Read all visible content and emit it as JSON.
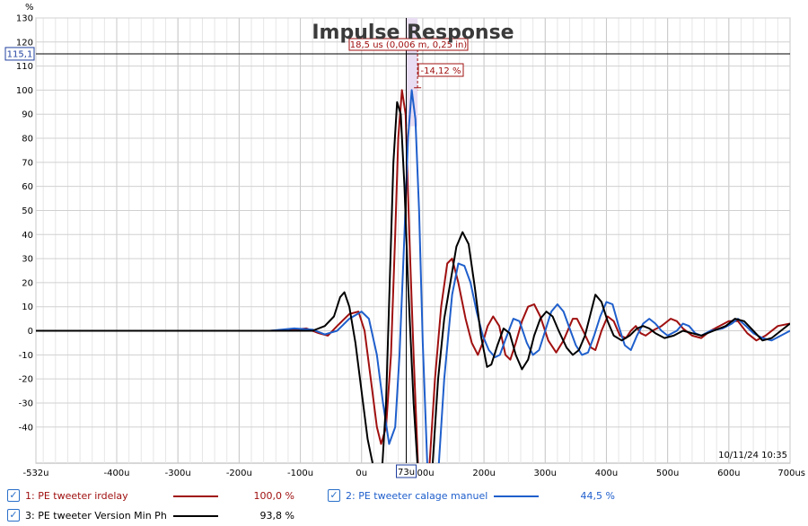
{
  "chart_data": {
    "type": "line",
    "title": "Impulse Response",
    "ylabel": "%",
    "xlim": [
      -532,
      700
    ],
    "ylim": [
      -55,
      130
    ],
    "x_ticks": [
      "-532u",
      "-400u",
      "-300u",
      "-200u",
      "-100u",
      "0u",
      "100u",
      "200u",
      "300u",
      "400u",
      "500u",
      "600u",
      "700us"
    ],
    "x_tick_values": [
      -532,
      -400,
      -300,
      -200,
      -100,
      0,
      100,
      200,
      300,
      400,
      500,
      600,
      700
    ],
    "y_ticks": [
      130,
      120,
      110,
      100,
      90,
      80,
      70,
      60,
      50,
      40,
      30,
      20,
      10,
      0,
      -10,
      -20,
      -30,
      -40
    ],
    "grid": true,
    "timestamp": "10/11/24 10:35",
    "cursor": {
      "x_label": "73u",
      "y_label": "115,1",
      "x_value": 73,
      "y_value": 115.1,
      "delta_label": "18,5 us (0,006 m, 0,25 in)",
      "delta_y_label": "-14,12 %"
    },
    "series": [
      {
        "name": "1: PE tweeter irdelay",
        "color": "#a01010",
        "level": "100,0 %",
        "points": [
          [
            -532,
            0
          ],
          [
            -150,
            0
          ],
          [
            -110,
            0.5
          ],
          [
            -90,
            1
          ],
          [
            -70,
            -1
          ],
          [
            -55,
            -2
          ],
          [
            -40,
            2
          ],
          [
            -20,
            7
          ],
          [
            -5,
            8
          ],
          [
            5,
            0
          ],
          [
            15,
            -20
          ],
          [
            25,
            -40
          ],
          [
            32,
            -47
          ],
          [
            40,
            -40
          ],
          [
            48,
            -10
          ],
          [
            55,
            40
          ],
          [
            60,
            80
          ],
          [
            66,
            100
          ],
          [
            72,
            90
          ],
          [
            78,
            40
          ],
          [
            85,
            -10
          ],
          [
            92,
            -55
          ],
          [
            100,
            -80
          ],
          [
            110,
            -60
          ],
          [
            120,
            -20
          ],
          [
            130,
            10
          ],
          [
            140,
            28
          ],
          [
            148,
            30
          ],
          [
            158,
            20
          ],
          [
            170,
            5
          ],
          [
            180,
            -5
          ],
          [
            190,
            -10
          ],
          [
            198,
            -5
          ],
          [
            206,
            2
          ],
          [
            215,
            6
          ],
          [
            225,
            2
          ],
          [
            235,
            -10
          ],
          [
            243,
            -12
          ],
          [
            252,
            -5
          ],
          [
            262,
            4
          ],
          [
            272,
            10
          ],
          [
            282,
            11
          ],
          [
            292,
            6
          ],
          [
            305,
            -4
          ],
          [
            318,
            -9
          ],
          [
            330,
            -4
          ],
          [
            345,
            5
          ],
          [
            352,
            5
          ],
          [
            362,
            0
          ],
          [
            375,
            -7
          ],
          [
            382,
            -8
          ],
          [
            392,
            0
          ],
          [
            402,
            6
          ],
          [
            412,
            4
          ],
          [
            422,
            -2
          ],
          [
            432,
            -3
          ],
          [
            440,
            0
          ],
          [
            448,
            2
          ],
          [
            456,
            -1
          ],
          [
            464,
            -2
          ],
          [
            475,
            0
          ],
          [
            490,
            2
          ],
          [
            505,
            5
          ],
          [
            515,
            4
          ],
          [
            525,
            1
          ],
          [
            540,
            -2
          ],
          [
            555,
            -3
          ],
          [
            570,
            0
          ],
          [
            600,
            4
          ],
          [
            615,
            4
          ],
          [
            630,
            -1
          ],
          [
            645,
            -4
          ],
          [
            660,
            -2
          ],
          [
            680,
            2
          ],
          [
            700,
            3
          ]
        ]
      },
      {
        "name": "2: PE tweeter calage manuel",
        "color": "#1f5fcc",
        "level": "44,5 %",
        "points": [
          [
            -532,
            0
          ],
          [
            -150,
            0
          ],
          [
            -110,
            1
          ],
          [
            -80,
            0.5
          ],
          [
            -60,
            -1.5
          ],
          [
            -40,
            0
          ],
          [
            -20,
            5
          ],
          [
            0,
            8
          ],
          [
            12,
            5
          ],
          [
            25,
            -10
          ],
          [
            35,
            -30
          ],
          [
            45,
            -47
          ],
          [
            55,
            -40
          ],
          [
            62,
            -10
          ],
          [
            70,
            40
          ],
          [
            76,
            80
          ],
          [
            82,
            100
          ],
          [
            88,
            88
          ],
          [
            94,
            50
          ],
          [
            100,
            -5
          ],
          [
            108,
            -60
          ],
          [
            115,
            -75
          ],
          [
            125,
            -60
          ],
          [
            135,
            -20
          ],
          [
            148,
            15
          ],
          [
            158,
            28
          ],
          [
            168,
            27
          ],
          [
            178,
            20
          ],
          [
            188,
            8
          ],
          [
            198,
            -2
          ],
          [
            208,
            -8
          ],
          [
            218,
            -11
          ],
          [
            226,
            -10
          ],
          [
            236,
            -3
          ],
          [
            248,
            5
          ],
          [
            258,
            4
          ],
          [
            270,
            -5
          ],
          [
            280,
            -10
          ],
          [
            290,
            -8
          ],
          [
            300,
            0
          ],
          [
            310,
            8
          ],
          [
            320,
            11
          ],
          [
            330,
            8
          ],
          [
            340,
            1
          ],
          [
            350,
            -6
          ],
          [
            360,
            -10
          ],
          [
            370,
            -9
          ],
          [
            380,
            -2
          ],
          [
            390,
            6
          ],
          [
            400,
            12
          ],
          [
            410,
            11
          ],
          [
            420,
            2
          ],
          [
            430,
            -6
          ],
          [
            440,
            -8
          ],
          [
            450,
            -2
          ],
          [
            460,
            3
          ],
          [
            470,
            5
          ],
          [
            480,
            3
          ],
          [
            490,
            0
          ],
          [
            500,
            -2
          ],
          [
            515,
            0
          ],
          [
            525,
            3
          ],
          [
            535,
            2
          ],
          [
            545,
            -1
          ],
          [
            555,
            -2
          ],
          [
            570,
            0
          ],
          [
            590,
            1
          ],
          [
            605,
            3
          ],
          [
            615,
            5
          ],
          [
            628,
            2
          ],
          [
            640,
            -1
          ],
          [
            655,
            -3
          ],
          [
            670,
            -4
          ],
          [
            685,
            -2
          ],
          [
            700,
            0
          ]
        ]
      },
      {
        "name": "3: PE tweeter Version Min Ph",
        "color": "#000000",
        "level": "93,8 %",
        "points": [
          [
            -532,
            0
          ],
          [
            -120,
            0
          ],
          [
            -100,
            0
          ],
          [
            -80,
            0
          ],
          [
            -60,
            2
          ],
          [
            -45,
            6
          ],
          [
            -35,
            14
          ],
          [
            -28,
            16
          ],
          [
            -20,
            10
          ],
          [
            -10,
            -5
          ],
          [
            0,
            -25
          ],
          [
            10,
            -45
          ],
          [
            18,
            -55
          ],
          [
            26,
            -62
          ],
          [
            33,
            -60
          ],
          [
            40,
            -30
          ],
          [
            46,
            20
          ],
          [
            52,
            70
          ],
          [
            58,
            95
          ],
          [
            64,
            90
          ],
          [
            70,
            60
          ],
          [
            76,
            20
          ],
          [
            85,
            -30
          ],
          [
            95,
            -70
          ],
          [
            105,
            -80
          ],
          [
            115,
            -60
          ],
          [
            125,
            -20
          ],
          [
            135,
            5
          ],
          [
            145,
            20
          ],
          [
            155,
            35
          ],
          [
            165,
            41
          ],
          [
            175,
            36
          ],
          [
            185,
            18
          ],
          [
            195,
            -2
          ],
          [
            205,
            -15
          ],
          [
            212,
            -14
          ],
          [
            222,
            -6
          ],
          [
            232,
            1
          ],
          [
            242,
            -1
          ],
          [
            252,
            -10
          ],
          [
            262,
            -16
          ],
          [
            272,
            -12
          ],
          [
            282,
            -2
          ],
          [
            292,
            5
          ],
          [
            302,
            8
          ],
          [
            312,
            6
          ],
          [
            322,
            0
          ],
          [
            335,
            -7
          ],
          [
            345,
            -10
          ],
          [
            355,
            -8
          ],
          [
            365,
            -2
          ],
          [
            375,
            8
          ],
          [
            382,
            15
          ],
          [
            392,
            12
          ],
          [
            402,
            4
          ],
          [
            412,
            -2
          ],
          [
            425,
            -4
          ],
          [
            438,
            -2
          ],
          [
            450,
            1
          ],
          [
            460,
            2
          ],
          [
            470,
            1
          ],
          [
            480,
            -1
          ],
          [
            495,
            -3
          ],
          [
            510,
            -2
          ],
          [
            525,
            0
          ],
          [
            540,
            -1
          ],
          [
            555,
            -2
          ],
          [
            575,
            0
          ],
          [
            595,
            2
          ],
          [
            610,
            5
          ],
          [
            625,
            4
          ],
          [
            640,
            0
          ],
          [
            655,
            -4
          ],
          [
            670,
            -3
          ],
          [
            685,
            0
          ],
          [
            700,
            3
          ]
        ]
      }
    ]
  }
}
